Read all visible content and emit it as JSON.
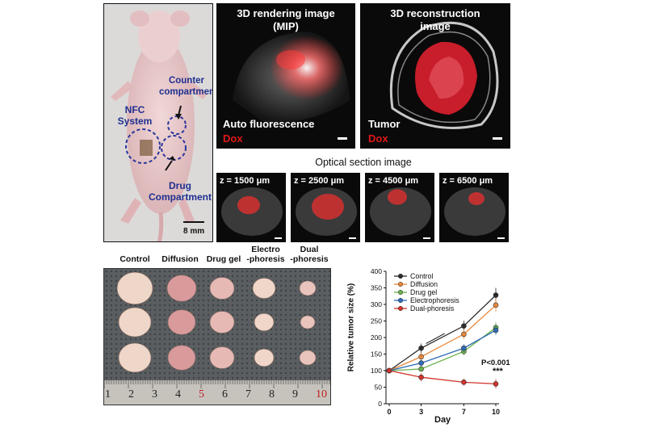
{
  "mouse_panel": {
    "labels": {
      "nfc_system": "NFC\nSystem",
      "counter": "Counter\ncompartment",
      "drug": "Drug\nCompartment"
    },
    "scale": "8 mm"
  },
  "rendering_panel": {
    "title": "3D rendering image\n(MIP)",
    "label_white": "Auto fluorescence",
    "label_red": "Dox"
  },
  "reconstruction_panel": {
    "title": "3D reconstruction\nimage",
    "label_white": "Tumor",
    "label_red": "Dox"
  },
  "optical_section": {
    "title": "Optical section image",
    "slices": [
      "z = 1500 μm",
      "z = 2500 μm",
      "z = 4500 μm",
      "z = 6500 μm"
    ]
  },
  "tumor_photo": {
    "conditions": [
      "Control",
      "Diffusion",
      "Drug gel",
      "Electro\n-phoresis",
      "Dual\n-phoresis"
    ],
    "ruler": [
      "1",
      "2",
      "3",
      "4",
      "5",
      "6",
      "7",
      "8",
      "9",
      "10"
    ]
  },
  "colors": {
    "control": "#2b2b2b",
    "diffusion": "#e8873a",
    "drug_gel": "#6ab04c",
    "electrophoresis": "#2e6bb5",
    "dual_phoresis": "#d0332b",
    "accent_red": "#e01818"
  },
  "chart_data": {
    "type": "line",
    "xlabel": "Day",
    "ylabel": "Relative tumor size (%)",
    "x": [
      0,
      3,
      7,
      10
    ],
    "xticks": [
      "0",
      "3",
      "7",
      "10"
    ],
    "yticks": [
      "0",
      "50",
      "100",
      "150",
      "200",
      "250",
      "300",
      "350",
      "400"
    ],
    "ylim": [
      0,
      400
    ],
    "legend_position": "top-left",
    "series": [
      {
        "name": "Control",
        "values": [
          100,
          168,
          235,
          328
        ]
      },
      {
        "name": "Diffusion",
        "values": [
          100,
          142,
          210,
          298
        ]
      },
      {
        "name": "Drug gel",
        "values": [
          100,
          105,
          158,
          230
        ]
      },
      {
        "name": "Electrophoresis",
        "values": [
          100,
          123,
          168,
          222
        ]
      },
      {
        "name": "Dual-phoresis",
        "values": [
          100,
          80,
          65,
          60
        ]
      }
    ],
    "annotations": {
      "p_value": "P<0.001",
      "stars": "***"
    }
  }
}
